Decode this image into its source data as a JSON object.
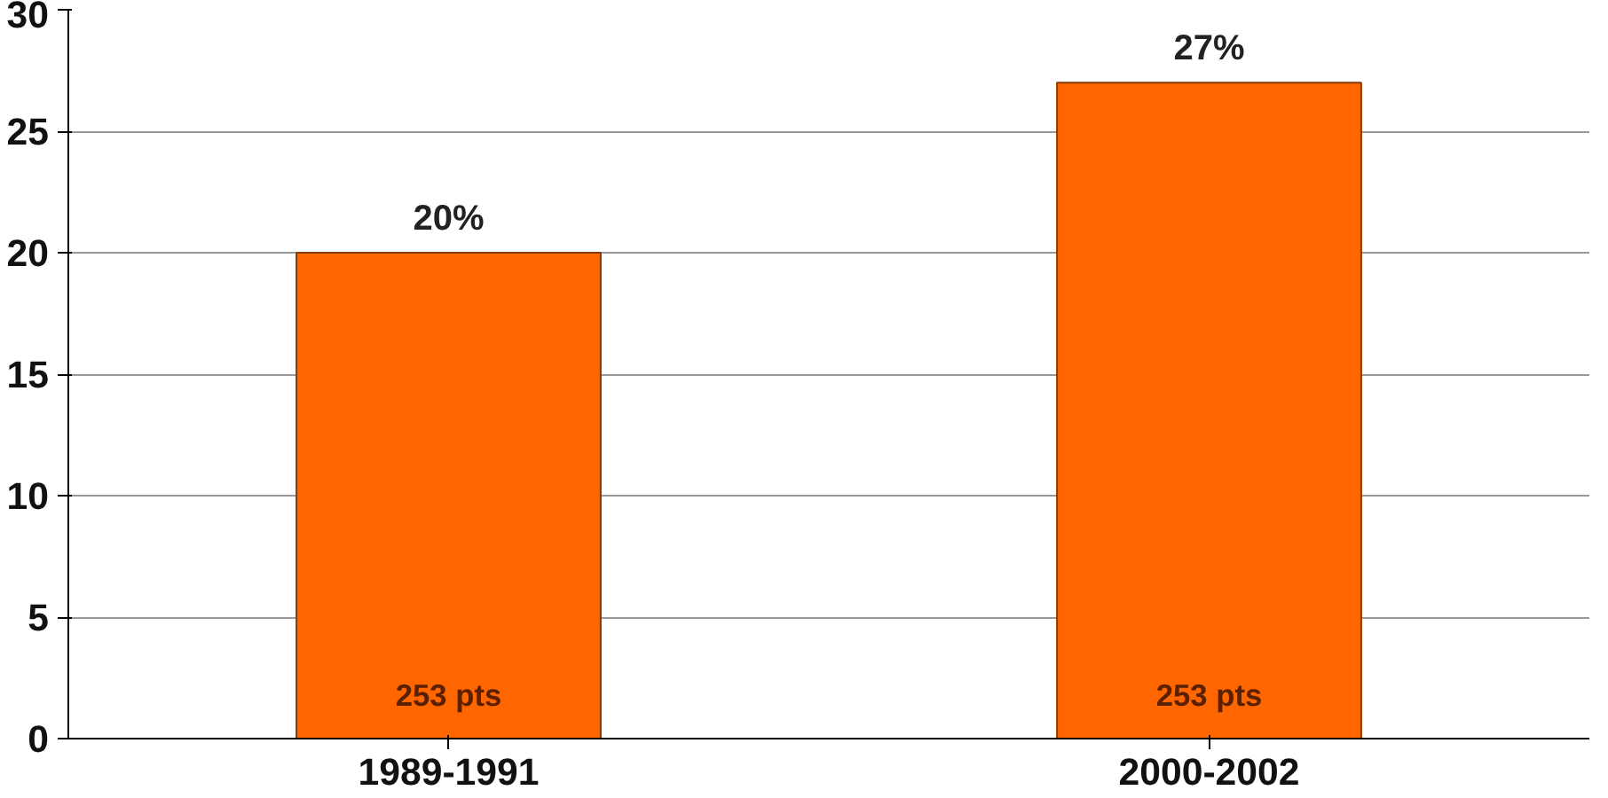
{
  "chart_data": {
    "type": "bar",
    "categories": [
      "1989-1991",
      "2000-2002"
    ],
    "values": [
      20,
      27
    ],
    "color": "#ff6600",
    "value_labels": [
      "20%",
      "27%"
    ],
    "annotations": [
      "253 pts",
      "253 pts"
    ],
    "ylim": [
      0,
      30
    ],
    "yticks": [
      0,
      5,
      10,
      15,
      20,
      25,
      30
    ],
    "grid": "y"
  }
}
